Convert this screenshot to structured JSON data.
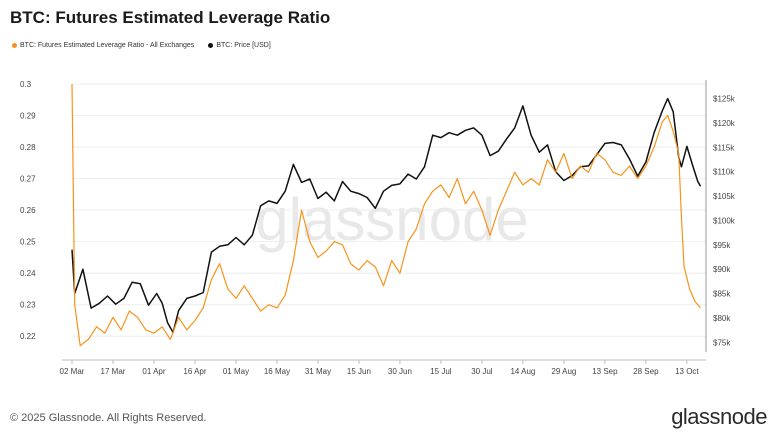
{
  "header": {
    "title": "BTC: Futures Estimated Leverage Ratio"
  },
  "legend": [
    {
      "label": "BTC: Futures Estimated Leverage Ratio - All Exchanges",
      "color": "#f7931a"
    },
    {
      "label": "BTC: Price [USD]",
      "color": "#111111"
    }
  ],
  "footer": {
    "copyright": "© 2025 Glassnode. All Rights Reserved.",
    "brand": "glassnode"
  },
  "watermark": "glassnode",
  "chart_data": {
    "type": "line",
    "x_ticks": [
      "02 Mar",
      "17 Mar",
      "01 Apr",
      "16 Apr",
      "01 May",
      "16 May",
      "31 May",
      "15 Jun",
      "30 Jun",
      "15 Jul",
      "30 Jul",
      "14 Aug",
      "29 Aug",
      "13 Sep",
      "28 Sep",
      "13 Oct"
    ],
    "y_left": {
      "min": 0.215,
      "max": 0.3,
      "ticks": [
        "0.3",
        "0.29",
        "0.28",
        "0.27",
        "0.26",
        "0.25",
        "0.24",
        "0.23",
        "0.22"
      ]
    },
    "y_right": {
      "min": 73000,
      "max": 128000,
      "ticks": [
        "$125k",
        "$120k",
        "$115k",
        "$110k",
        "$105k",
        "$100k",
        "$95k",
        "$90k",
        "$85k",
        "$80k",
        "$75k"
      ]
    },
    "series": [
      {
        "name": "BTC: Futures Estimated Leverage Ratio - All Exchanges",
        "axis": "left",
        "color": "#f7931a",
        "points": [
          [
            "2025-03-02",
            0.3
          ],
          [
            "2025-03-03",
            0.23
          ],
          [
            "2025-03-05",
            0.217
          ],
          [
            "2025-03-08",
            0.219
          ],
          [
            "2025-03-11",
            0.223
          ],
          [
            "2025-03-14",
            0.221
          ],
          [
            "2025-03-17",
            0.226
          ],
          [
            "2025-03-20",
            0.222
          ],
          [
            "2025-03-23",
            0.228
          ],
          [
            "2025-03-26",
            0.226
          ],
          [
            "2025-03-29",
            0.222
          ],
          [
            "2025-04-01",
            0.221
          ],
          [
            "2025-04-04",
            0.223
          ],
          [
            "2025-04-07",
            0.219
          ],
          [
            "2025-04-10",
            0.226
          ],
          [
            "2025-04-13",
            0.222
          ],
          [
            "2025-04-16",
            0.225
          ],
          [
            "2025-04-19",
            0.229
          ],
          [
            "2025-04-22",
            0.238
          ],
          [
            "2025-04-25",
            0.243
          ],
          [
            "2025-04-28",
            0.235
          ],
          [
            "2025-05-01",
            0.232
          ],
          [
            "2025-05-04",
            0.236
          ],
          [
            "2025-05-07",
            0.232
          ],
          [
            "2025-05-10",
            0.228
          ],
          [
            "2025-05-13",
            0.23
          ],
          [
            "2025-05-16",
            0.229
          ],
          [
            "2025-05-19",
            0.233
          ],
          [
            "2025-05-22",
            0.244
          ],
          [
            "2025-05-25",
            0.26
          ],
          [
            "2025-05-28",
            0.25
          ],
          [
            "2025-05-31",
            0.245
          ],
          [
            "2025-06-03",
            0.247
          ],
          [
            "2025-06-06",
            0.25
          ],
          [
            "2025-06-09",
            0.249
          ],
          [
            "2025-06-12",
            0.243
          ],
          [
            "2025-06-15",
            0.241
          ],
          [
            "2025-06-18",
            0.244
          ],
          [
            "2025-06-21",
            0.242
          ],
          [
            "2025-06-24",
            0.236
          ],
          [
            "2025-06-27",
            0.244
          ],
          [
            "2025-06-30",
            0.24
          ],
          [
            "2025-07-03",
            0.25
          ],
          [
            "2025-07-06",
            0.254
          ],
          [
            "2025-07-09",
            0.262
          ],
          [
            "2025-07-12",
            0.266
          ],
          [
            "2025-07-15",
            0.268
          ],
          [
            "2025-07-18",
            0.264
          ],
          [
            "2025-07-21",
            0.27
          ],
          [
            "2025-07-24",
            0.262
          ],
          [
            "2025-07-27",
            0.266
          ],
          [
            "2025-07-30",
            0.26
          ],
          [
            "2025-08-02",
            0.252
          ],
          [
            "2025-08-05",
            0.26
          ],
          [
            "2025-08-08",
            0.266
          ],
          [
            "2025-08-11",
            0.272
          ],
          [
            "2025-08-14",
            0.268
          ],
          [
            "2025-08-17",
            0.27
          ],
          [
            "2025-08-20",
            0.268
          ],
          [
            "2025-08-23",
            0.276
          ],
          [
            "2025-08-26",
            0.272
          ],
          [
            "2025-08-29",
            0.278
          ],
          [
            "2025-09-01",
            0.27
          ],
          [
            "2025-09-04",
            0.274
          ],
          [
            "2025-09-07",
            0.272
          ],
          [
            "2025-09-10",
            0.278
          ],
          [
            "2025-09-13",
            0.276
          ],
          [
            "2025-09-16",
            0.272
          ],
          [
            "2025-09-19",
            0.271
          ],
          [
            "2025-09-22",
            0.274
          ],
          [
            "2025-09-25",
            0.27
          ],
          [
            "2025-09-28",
            0.274
          ],
          [
            "2025-10-01",
            0.28
          ],
          [
            "2025-10-04",
            0.288
          ],
          [
            "2025-10-06",
            0.29
          ],
          [
            "2025-10-08",
            0.285
          ],
          [
            "2025-10-10",
            0.278
          ],
          [
            "2025-10-11",
            0.258
          ],
          [
            "2025-10-12",
            0.242
          ],
          [
            "2025-10-14",
            0.235
          ],
          [
            "2025-10-16",
            0.231
          ],
          [
            "2025-10-18",
            0.229
          ]
        ]
      },
      {
        "name": "BTC: Price [USD]",
        "axis": "right",
        "color": "#111111",
        "points": [
          [
            "2025-03-02",
            94000
          ],
          [
            "2025-03-03",
            85000
          ],
          [
            "2025-03-06",
            90000
          ],
          [
            "2025-03-09",
            82000
          ],
          [
            "2025-03-12",
            83000
          ],
          [
            "2025-03-15",
            84500
          ],
          [
            "2025-03-18",
            82800
          ],
          [
            "2025-03-21",
            84000
          ],
          [
            "2025-03-24",
            87300
          ],
          [
            "2025-03-27",
            87000
          ],
          [
            "2025-03-30",
            82600
          ],
          [
            "2025-04-02",
            85000
          ],
          [
            "2025-04-04",
            83000
          ],
          [
            "2025-04-06",
            79000
          ],
          [
            "2025-04-08",
            77000
          ],
          [
            "2025-04-10",
            81500
          ],
          [
            "2025-04-13",
            84000
          ],
          [
            "2025-04-16",
            84500
          ],
          [
            "2025-04-19",
            85200
          ],
          [
            "2025-04-22",
            93500
          ],
          [
            "2025-04-25",
            94700
          ],
          [
            "2025-04-28",
            95000
          ],
          [
            "2025-05-01",
            96500
          ],
          [
            "2025-05-04",
            95000
          ],
          [
            "2025-05-07",
            97000
          ],
          [
            "2025-05-10",
            103000
          ],
          [
            "2025-05-13",
            104000
          ],
          [
            "2025-05-16",
            103500
          ],
          [
            "2025-05-19",
            106000
          ],
          [
            "2025-05-22",
            111500
          ],
          [
            "2025-05-25",
            107800
          ],
          [
            "2025-05-28",
            108500
          ],
          [
            "2025-05-31",
            104500
          ],
          [
            "2025-06-03",
            105800
          ],
          [
            "2025-06-06",
            104000
          ],
          [
            "2025-06-09",
            108000
          ],
          [
            "2025-06-12",
            106000
          ],
          [
            "2025-06-15",
            105500
          ],
          [
            "2025-06-18",
            104700
          ],
          [
            "2025-06-21",
            102500
          ],
          [
            "2025-06-24",
            106000
          ],
          [
            "2025-06-27",
            107200
          ],
          [
            "2025-06-30",
            107500
          ],
          [
            "2025-07-03",
            109500
          ],
          [
            "2025-07-06",
            108500
          ],
          [
            "2025-07-09",
            111000
          ],
          [
            "2025-07-12",
            117500
          ],
          [
            "2025-07-15",
            117000
          ],
          [
            "2025-07-18",
            118000
          ],
          [
            "2025-07-21",
            117500
          ],
          [
            "2025-07-24",
            118500
          ],
          [
            "2025-07-27",
            119000
          ],
          [
            "2025-07-30",
            117500
          ],
          [
            "2025-08-02",
            113300
          ],
          [
            "2025-08-05",
            114200
          ],
          [
            "2025-08-08",
            116700
          ],
          [
            "2025-08-11",
            119000
          ],
          [
            "2025-08-14",
            123500
          ],
          [
            "2025-08-17",
            117500
          ],
          [
            "2025-08-20",
            114000
          ],
          [
            "2025-08-23",
            115500
          ],
          [
            "2025-08-26",
            110000
          ],
          [
            "2025-08-29",
            108200
          ],
          [
            "2025-09-01",
            109200
          ],
          [
            "2025-09-04",
            111000
          ],
          [
            "2025-09-07",
            111200
          ],
          [
            "2025-09-10",
            113500
          ],
          [
            "2025-09-13",
            115800
          ],
          [
            "2025-09-16",
            116000
          ],
          [
            "2025-09-19",
            115500
          ],
          [
            "2025-09-22",
            112600
          ],
          [
            "2025-09-25",
            109100
          ],
          [
            "2025-09-28",
            112000
          ],
          [
            "2025-10-01",
            118000
          ],
          [
            "2025-10-04",
            122500
          ],
          [
            "2025-10-06",
            125000
          ],
          [
            "2025-10-08",
            122300
          ],
          [
            "2025-10-10",
            113000
          ],
          [
            "2025-10-11",
            111000
          ],
          [
            "2025-10-13",
            115200
          ],
          [
            "2025-10-15",
            111500
          ],
          [
            "2025-10-17",
            108000
          ],
          [
            "2025-10-18",
            107000
          ]
        ]
      }
    ],
    "grid": true,
    "legend_position": "top-left"
  }
}
